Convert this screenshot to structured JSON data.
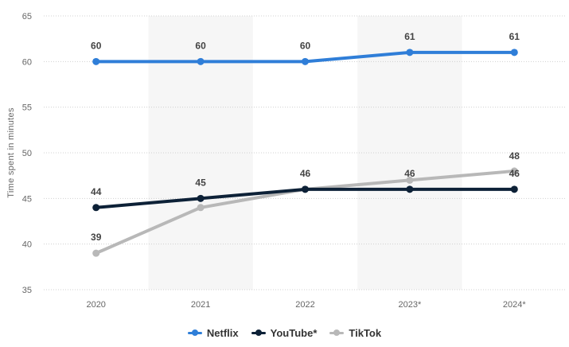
{
  "chart_data": {
    "type": "line",
    "ylabel": "Time spent in minutes",
    "categories": [
      "2020",
      "2021",
      "2022",
      "2023*",
      "2024*"
    ],
    "ylim": [
      35,
      65
    ],
    "yticks": [
      35,
      40,
      45,
      50,
      55,
      60,
      65
    ],
    "grid": true,
    "legend_position": "bottom-center",
    "series": [
      {
        "name": "Netflix",
        "color": "#2f7ed8",
        "values": [
          60,
          60,
          60,
          61,
          61
        ]
      },
      {
        "name": "YouTube*",
        "color": "#0d2137",
        "values": [
          44,
          45,
          46,
          46,
          46
        ]
      },
      {
        "name": "TikTok",
        "color": "#b8b8b8",
        "values": [
          39,
          44,
          46,
          47,
          48
        ]
      }
    ],
    "data_labels": [
      {
        "series": "Netflix",
        "values": [
          "60",
          "60",
          "60",
          "61",
          "61"
        ]
      },
      {
        "series": "YouTube*",
        "values": [
          "44",
          "45",
          "46",
          "46",
          "46"
        ]
      },
      {
        "series": "TikTok",
        "values": [
          "39",
          null,
          null,
          null,
          "48"
        ]
      }
    ]
  }
}
